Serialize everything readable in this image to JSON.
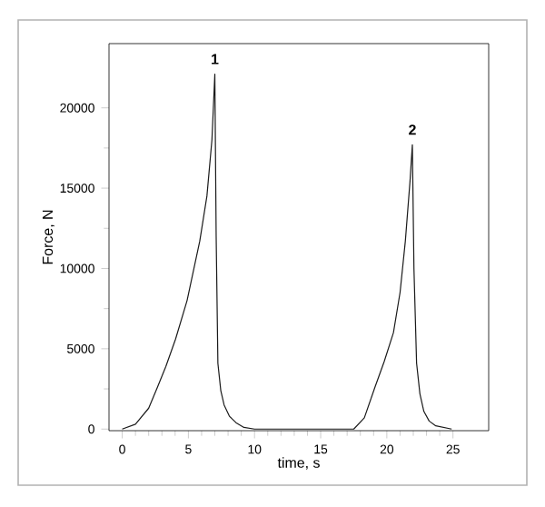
{
  "chart_data": {
    "type": "line",
    "xlabel": "time, s",
    "ylabel": "Force, N",
    "series": [
      {
        "color": "#1a1a1a",
        "x": [
          0,
          1,
          2,
          2.66,
          3.3,
          4.03,
          4.9,
          5.86,
          6.4,
          6.78,
          7.0,
          7.1,
          7.23,
          7.45,
          7.7,
          8.1,
          8.6,
          9.2,
          10,
          12,
          15,
          17.5,
          18.3,
          19.1,
          19.8,
          20.5,
          21.0,
          21.4,
          21.75,
          21.93,
          22.05,
          22.25,
          22.5,
          22.8,
          23.2,
          23.7,
          24.9
        ],
        "values": [
          0,
          300,
          1300,
          2600,
          3900,
          5600,
          8000,
          11700,
          14500,
          18000,
          22100,
          12000,
          4100,
          2400,
          1500,
          800,
          400,
          100,
          0,
          0,
          0,
          0,
          700,
          2600,
          4200,
          6000,
          8500,
          11700,
          15400,
          17700,
          10000,
          4100,
          2200,
          1100,
          500,
          200,
          0
        ]
      }
    ],
    "xlim": [
      -1,
      27.7
    ],
    "ylim": [
      -100,
      24000
    ],
    "xticks": [
      0,
      5,
      10,
      15,
      20,
      25
    ],
    "yticks": [
      0,
      5000,
      10000,
      15000,
      20000
    ],
    "annotations": [
      {
        "text": "1",
        "x": 7.0,
        "y": 22100
      },
      {
        "text": "2",
        "x": 21.93,
        "y": 17700
      }
    ],
    "grid": false,
    "marker": "none",
    "line_style": "solid"
  }
}
